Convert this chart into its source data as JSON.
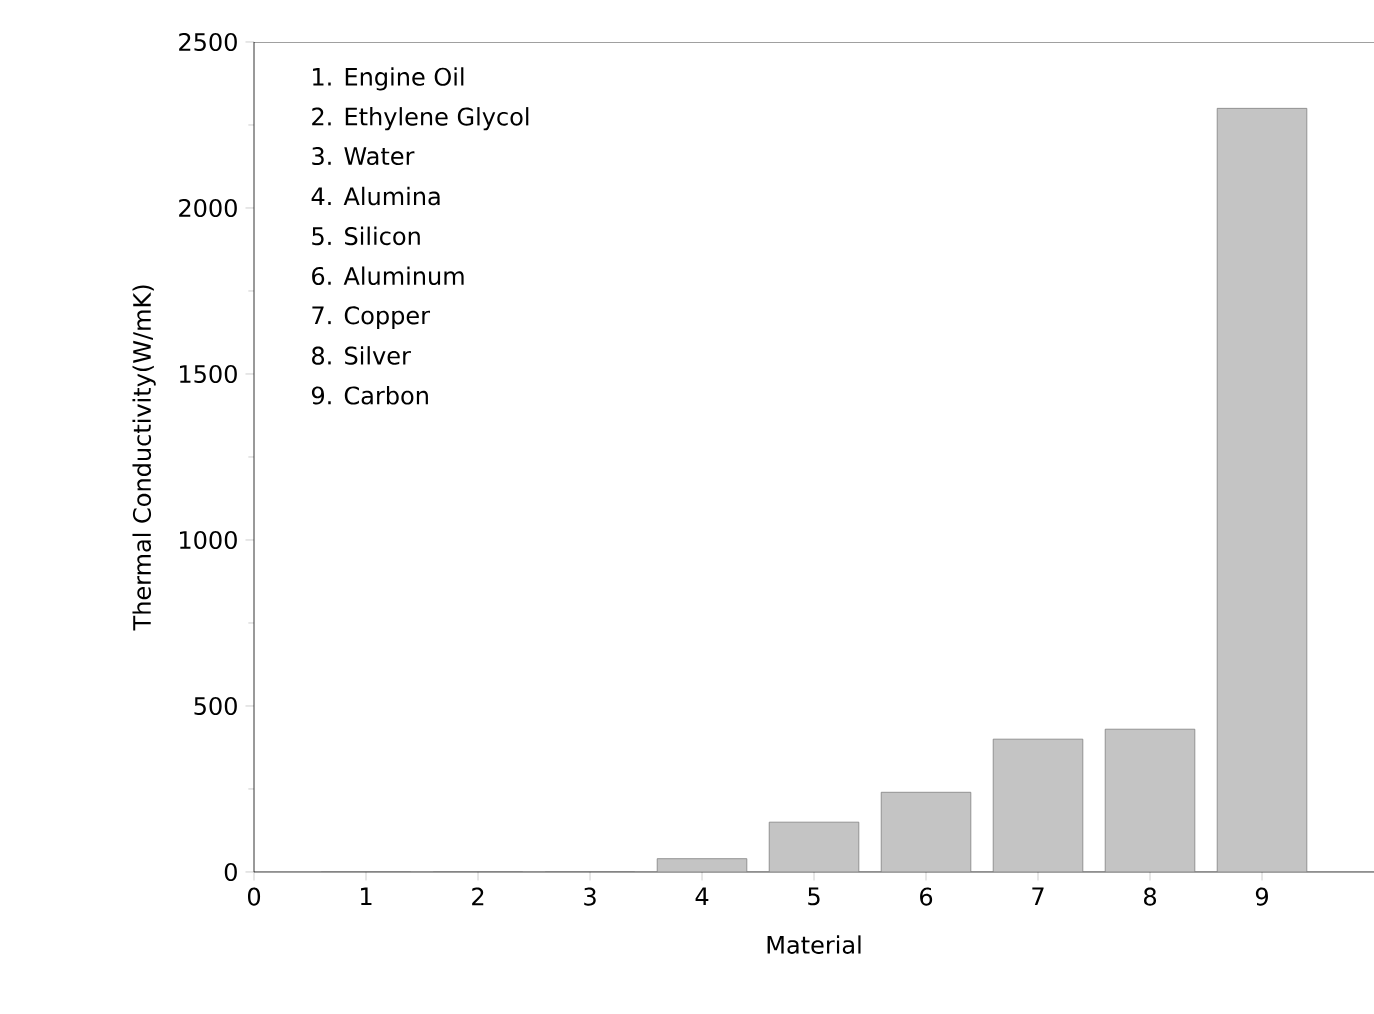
{
  "chart_data": {
    "type": "bar",
    "xlabel": "Material",
    "ylabel": "Thermal Conductivity(W/mK)",
    "x": [
      1,
      2,
      3,
      4,
      5,
      6,
      7,
      8,
      9
    ],
    "values": [
      0,
      0,
      0,
      40,
      150,
      240,
      400,
      430,
      2300
    ],
    "color": "#c4c4c4",
    "xlim": [
      0,
      10
    ],
    "xticks": [
      0,
      1,
      2,
      3,
      4,
      5,
      6,
      7,
      8,
      9
    ],
    "ylim": [
      0,
      2500
    ],
    "yticks": [
      0,
      500,
      1000,
      1500,
      2000,
      2500
    ],
    "grid": false,
    "annotations": [
      "1. Engine Oil",
      "2. Ethylene Glycol",
      "3. Water",
      "4. Alumina",
      "5. Silicon",
      "6. Aluminum",
      "7. Copper",
      "8. Silver",
      "9. Carbon"
    ]
  }
}
